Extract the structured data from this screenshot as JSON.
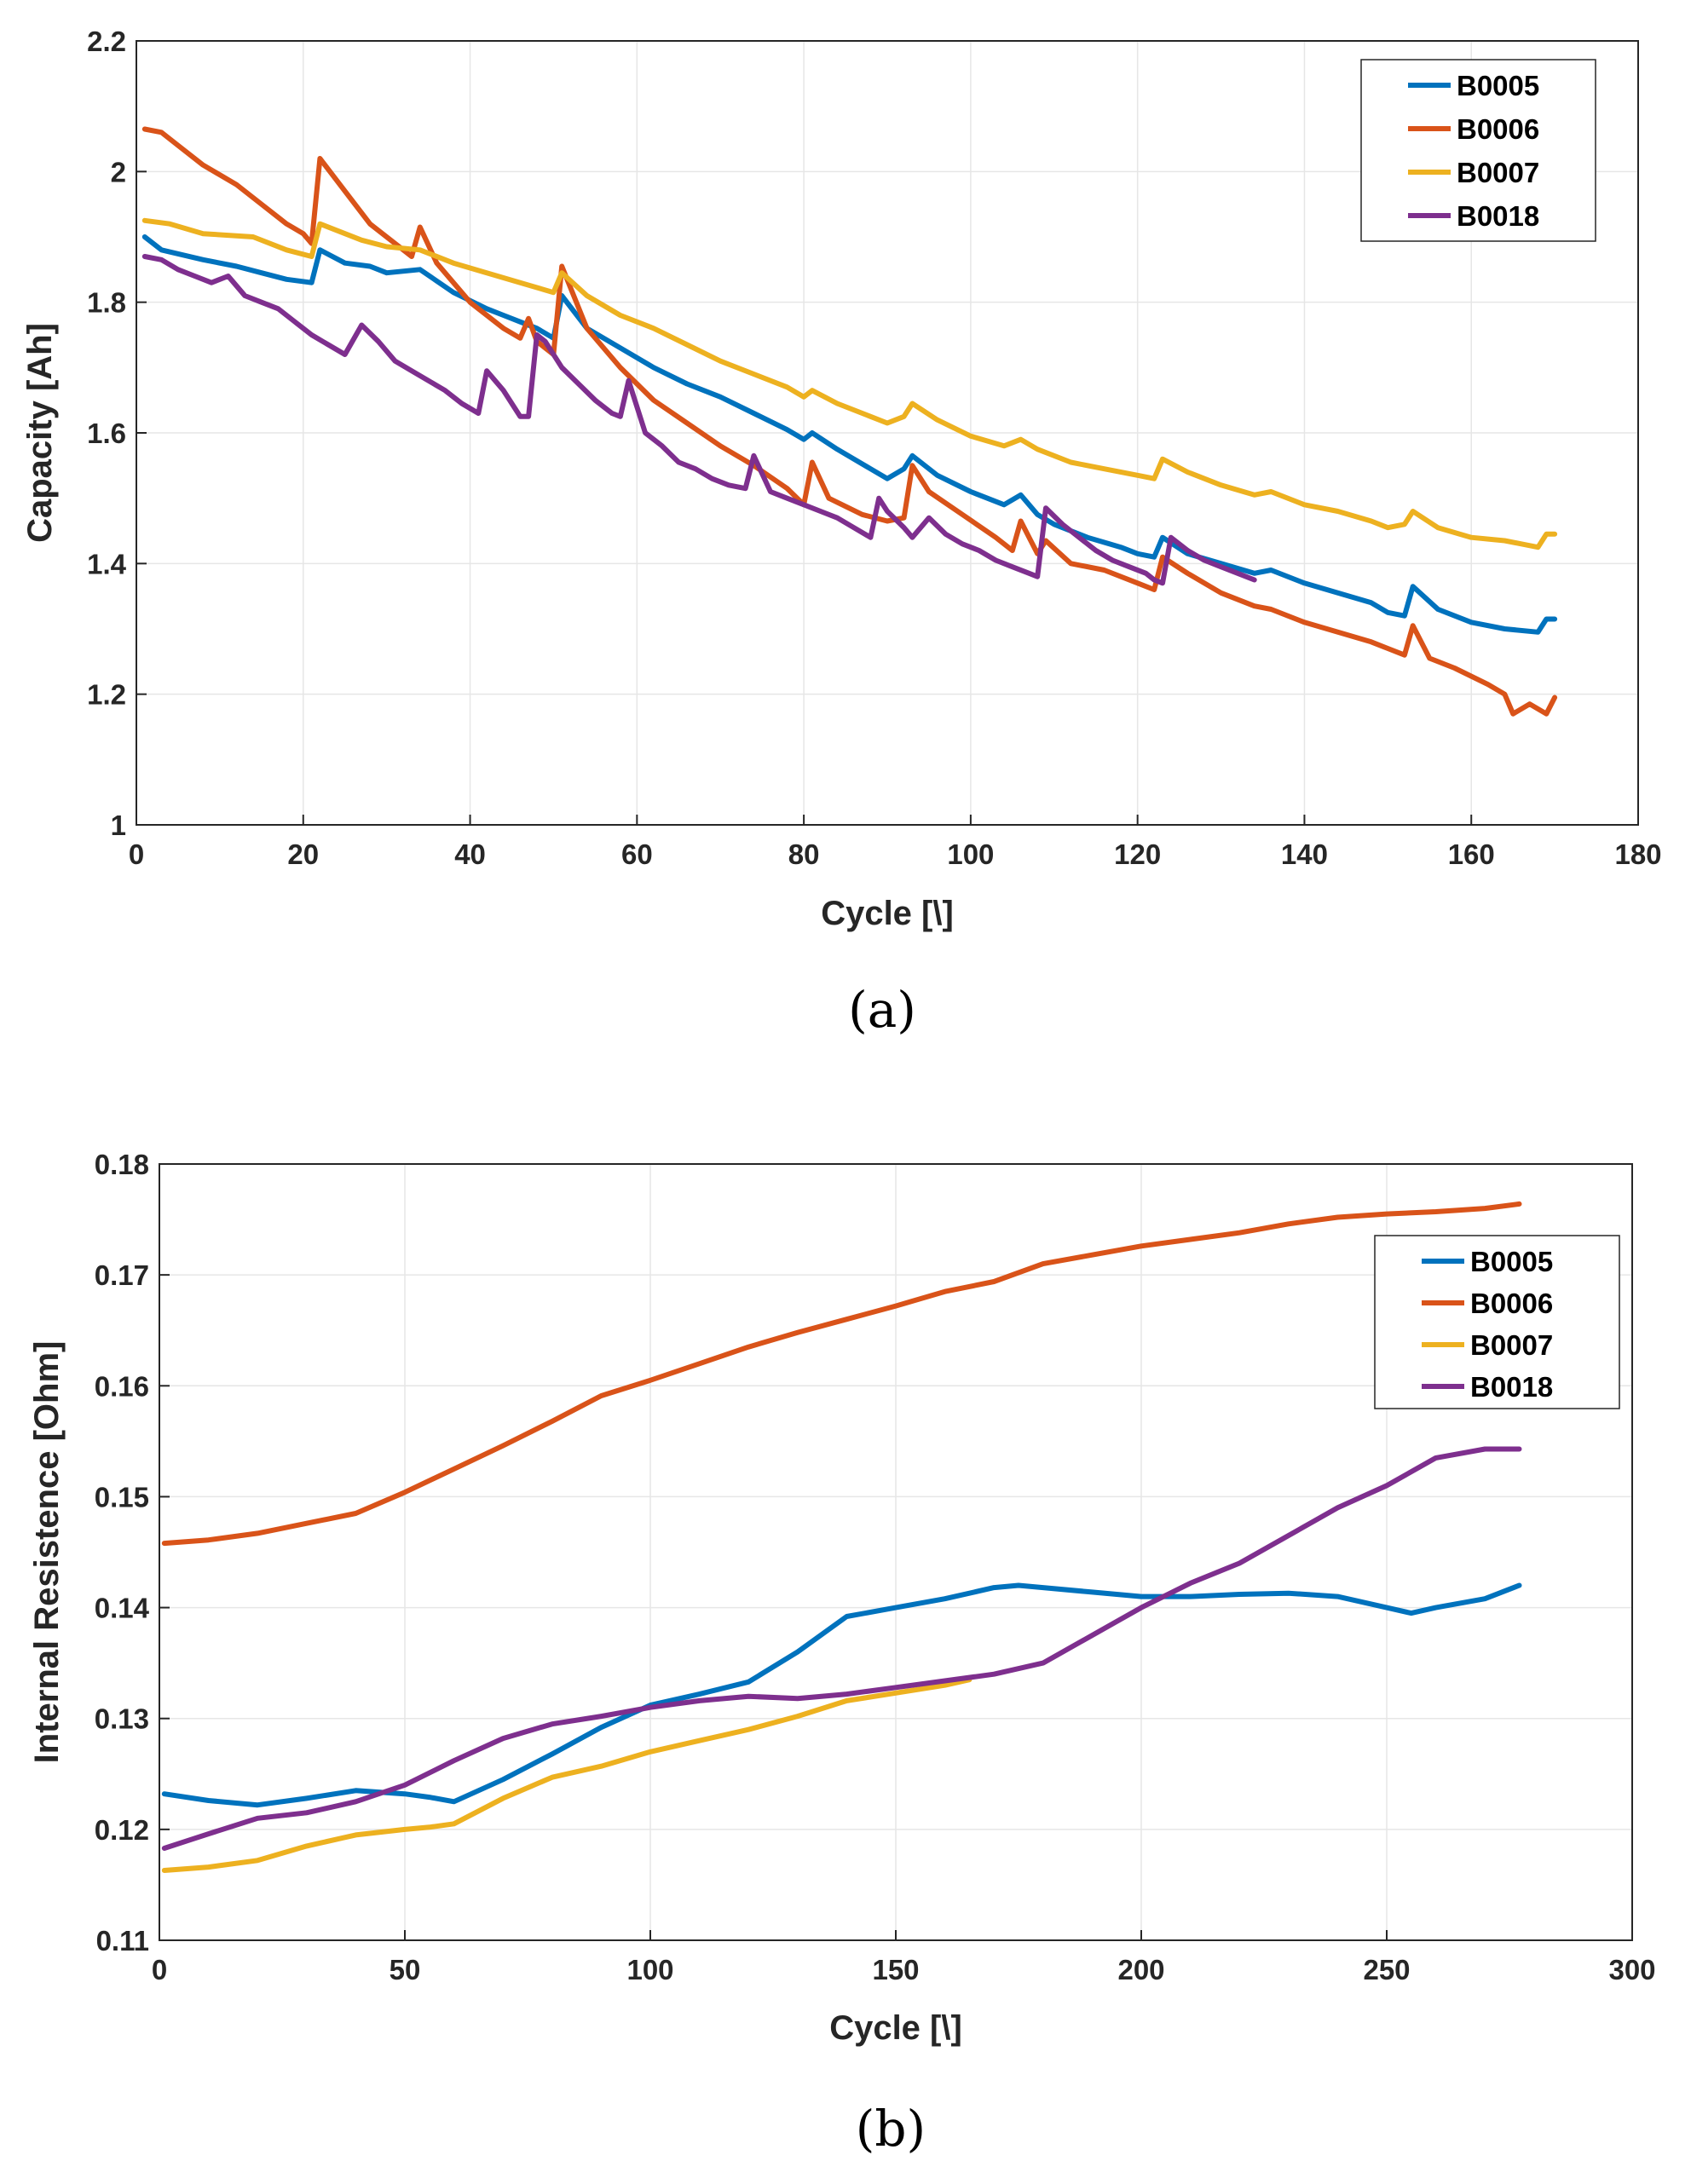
{
  "chart_data": [
    {
      "type": "line",
      "caption": "(a)",
      "xlabel": "Cycle [\\]",
      "ylabel": "Capacity [Ah]",
      "xlim": [
        0,
        180
      ],
      "ylim": [
        1,
        2.2
      ],
      "xticks": [
        "0",
        "20",
        "40",
        "60",
        "80",
        "100",
        "120",
        "140",
        "160",
        "180"
      ],
      "yticks": [
        "1",
        "1.2",
        "1.4",
        "1.6",
        "1.8",
        "2",
        "2.2"
      ],
      "grid": true,
      "legend_position": "top-right",
      "series": [
        {
          "name": "B0005",
          "color": "#0072BD",
          "x": [
            1,
            3,
            8,
            12,
            15,
            18,
            21,
            22,
            25,
            28,
            30,
            34,
            38,
            42,
            44,
            46,
            48,
            50,
            51,
            54,
            58,
            62,
            66,
            70,
            74,
            78,
            80,
            81,
            84,
            88,
            90,
            92,
            93,
            96,
            100,
            104,
            106,
            108,
            110,
            114,
            118,
            120,
            122,
            123,
            126,
            130,
            134,
            136,
            140,
            144,
            148,
            150,
            152,
            153,
            156,
            160,
            164,
            168,
            169,
            170
          ],
          "y": [
            1.9,
            1.88,
            1.865,
            1.855,
            1.845,
            1.835,
            1.83,
            1.88,
            1.86,
            1.855,
            1.845,
            1.85,
            1.815,
            1.79,
            1.78,
            1.77,
            1.76,
            1.745,
            1.81,
            1.76,
            1.73,
            1.7,
            1.675,
            1.655,
            1.63,
            1.605,
            1.59,
            1.6,
            1.575,
            1.545,
            1.53,
            1.545,
            1.565,
            1.535,
            1.51,
            1.49,
            1.505,
            1.475,
            1.46,
            1.44,
            1.425,
            1.415,
            1.41,
            1.44,
            1.415,
            1.4,
            1.385,
            1.39,
            1.37,
            1.355,
            1.34,
            1.325,
            1.32,
            1.365,
            1.33,
            1.31,
            1.3,
            1.295,
            1.315,
            1.315
          ]
        },
        {
          "name": "B0006",
          "color": "#D95319",
          "x": [
            1,
            3,
            5,
            8,
            12,
            15,
            18,
            20,
            21,
            22,
            25,
            28,
            31,
            33,
            34,
            36,
            40,
            44,
            46,
            47,
            48,
            50,
            51,
            54,
            58,
            62,
            66,
            70,
            74,
            78,
            80,
            81,
            83,
            87,
            90,
            92,
            93,
            95,
            99,
            103,
            105,
            106,
            108,
            109,
            112,
            116,
            120,
            122,
            123,
            126,
            130,
            134,
            136,
            140,
            144,
            148,
            150,
            152,
            153,
            155,
            158,
            162,
            164,
            165,
            167,
            169,
            170
          ],
          "y": [
            2.065,
            2.06,
            2.04,
            2.01,
            1.98,
            1.95,
            1.92,
            1.905,
            1.89,
            2.02,
            1.97,
            1.92,
            1.89,
            1.87,
            1.915,
            1.86,
            1.8,
            1.76,
            1.745,
            1.775,
            1.74,
            1.72,
            1.855,
            1.76,
            1.7,
            1.65,
            1.615,
            1.58,
            1.55,
            1.515,
            1.49,
            1.555,
            1.5,
            1.475,
            1.465,
            1.47,
            1.55,
            1.51,
            1.475,
            1.44,
            1.42,
            1.465,
            1.415,
            1.435,
            1.4,
            1.39,
            1.37,
            1.36,
            1.41,
            1.385,
            1.355,
            1.335,
            1.33,
            1.31,
            1.295,
            1.28,
            1.27,
            1.26,
            1.305,
            1.255,
            1.24,
            1.215,
            1.2,
            1.17,
            1.185,
            1.17,
            1.195
          ]
        },
        {
          "name": "B0007",
          "color": "#EDB120",
          "x": [
            1,
            4,
            8,
            14,
            18,
            21,
            22,
            24,
            27,
            30,
            34,
            38,
            42,
            46,
            50,
            51,
            54,
            58,
            62,
            66,
            70,
            74,
            78,
            80,
            81,
            84,
            88,
            90,
            92,
            93,
            96,
            100,
            104,
            106,
            108,
            112,
            116,
            120,
            122,
            123,
            126,
            130,
            134,
            136,
            140,
            144,
            148,
            150,
            152,
            153,
            156,
            160,
            164,
            168,
            169,
            170
          ],
          "y": [
            1.925,
            1.92,
            1.905,
            1.9,
            1.88,
            1.87,
            1.92,
            1.91,
            1.895,
            1.885,
            1.88,
            1.86,
            1.845,
            1.83,
            1.815,
            1.845,
            1.81,
            1.78,
            1.76,
            1.735,
            1.71,
            1.69,
            1.67,
            1.655,
            1.665,
            1.645,
            1.625,
            1.615,
            1.625,
            1.645,
            1.62,
            1.595,
            1.58,
            1.59,
            1.575,
            1.555,
            1.545,
            1.535,
            1.53,
            1.56,
            1.54,
            1.52,
            1.505,
            1.51,
            1.49,
            1.48,
            1.465,
            1.455,
            1.46,
            1.48,
            1.455,
            1.44,
            1.435,
            1.425,
            1.445,
            1.445
          ]
        },
        {
          "name": "B0018",
          "color": "#7E2F8E",
          "x": [
            1,
            3,
            5,
            7,
            9,
            11,
            13,
            15,
            17,
            19,
            21,
            23,
            25,
            27,
            29,
            31,
            33,
            35,
            37,
            39,
            41,
            42,
            44,
            46,
            47,
            48,
            49,
            51,
            53,
            55,
            57,
            58,
            59,
            61,
            63,
            65,
            67,
            69,
            71,
            73,
            74,
            76,
            78,
            80,
            82,
            84,
            86,
            88,
            89,
            90,
            92,
            93,
            95,
            97,
            99,
            101,
            103,
            105,
            107,
            108,
            109,
            111,
            113,
            115,
            117,
            119,
            121,
            122,
            123,
            124,
            126,
            128,
            130,
            132,
            134
          ],
          "y": [
            1.87,
            1.865,
            1.85,
            1.84,
            1.83,
            1.84,
            1.81,
            1.8,
            1.79,
            1.77,
            1.75,
            1.735,
            1.72,
            1.765,
            1.74,
            1.71,
            1.695,
            1.68,
            1.665,
            1.645,
            1.63,
            1.695,
            1.665,
            1.625,
            1.625,
            1.75,
            1.74,
            1.7,
            1.675,
            1.65,
            1.63,
            1.625,
            1.68,
            1.6,
            1.58,
            1.555,
            1.545,
            1.53,
            1.52,
            1.515,
            1.565,
            1.51,
            1.5,
            1.49,
            1.48,
            1.47,
            1.455,
            1.44,
            1.5,
            1.48,
            1.455,
            1.44,
            1.47,
            1.445,
            1.43,
            1.42,
            1.405,
            1.395,
            1.385,
            1.38,
            1.485,
            1.46,
            1.44,
            1.42,
            1.405,
            1.395,
            1.385,
            1.375,
            1.37,
            1.44,
            1.42,
            1.405,
            1.395,
            1.385,
            1.375
          ]
        }
      ]
    },
    {
      "type": "line",
      "caption": "(b)",
      "xlabel": "Cycle [\\]",
      "ylabel": "Internal Resistence [Ohm]",
      "xlim": [
        0,
        300
      ],
      "ylim": [
        0.11,
        0.18
      ],
      "xticks": [
        "0",
        "50",
        "100",
        "150",
        "200",
        "250",
        "300"
      ],
      "yticks": [
        "0.11",
        "0.12",
        "0.13",
        "0.14",
        "0.15",
        "0.16",
        "0.17",
        "0.18"
      ],
      "grid": true,
      "legend_position": "top-right",
      "series": [
        {
          "name": "B0005",
          "color": "#0072BD",
          "x": [
            1,
            10,
            20,
            30,
            40,
            50,
            55,
            60,
            70,
            80,
            90,
            100,
            110,
            120,
            130,
            140,
            150,
            160,
            170,
            175,
            180,
            190,
            200,
            210,
            220,
            230,
            240,
            250,
            255,
            260,
            270,
            277
          ],
          "y": [
            0.1232,
            0.1226,
            0.1222,
            0.1228,
            0.1235,
            0.1232,
            0.1229,
            0.1225,
            0.1245,
            0.1268,
            0.1292,
            0.1312,
            0.1322,
            0.1333,
            0.136,
            0.1392,
            0.14,
            0.1408,
            0.1418,
            0.142,
            0.1418,
            0.1414,
            0.141,
            0.141,
            0.1412,
            0.1413,
            0.141,
            0.14,
            0.1395,
            0.14,
            0.1408,
            0.142
          ]
        },
        {
          "name": "B0006",
          "color": "#D95319",
          "x": [
            1,
            10,
            20,
            30,
            40,
            50,
            60,
            70,
            80,
            90,
            100,
            110,
            120,
            130,
            140,
            150,
            160,
            170,
            180,
            190,
            200,
            210,
            220,
            230,
            240,
            250,
            260,
            270,
            277
          ],
          "y": [
            0.1458,
            0.1461,
            0.1467,
            0.1476,
            0.1485,
            0.1504,
            0.1525,
            0.1546,
            0.1568,
            0.1591,
            0.1605,
            0.162,
            0.1635,
            0.1648,
            0.166,
            0.1672,
            0.1685,
            0.1694,
            0.171,
            0.1718,
            0.1726,
            0.1732,
            0.1738,
            0.1746,
            0.1752,
            0.1755,
            0.1757,
            0.176,
            0.1764
          ]
        },
        {
          "name": "B0007",
          "color": "#EDB120",
          "x": [
            1,
            10,
            20,
            30,
            40,
            50,
            55,
            60,
            70,
            80,
            90,
            100,
            110,
            120,
            130,
            140,
            150,
            160,
            165
          ],
          "y": [
            0.1163,
            0.1166,
            0.1172,
            0.1185,
            0.1195,
            0.12,
            0.1202,
            0.1205,
            0.1228,
            0.1247,
            0.1257,
            0.127,
            0.128,
            0.129,
            0.1302,
            0.1316,
            0.1323,
            0.133,
            0.1335
          ]
        },
        {
          "name": "B0018",
          "color": "#7E2F8E",
          "x": [
            1,
            10,
            20,
            30,
            40,
            50,
            60,
            70,
            80,
            90,
            100,
            110,
            120,
            130,
            140,
            150,
            160,
            170,
            180,
            190,
            200,
            210,
            220,
            230,
            240,
            250,
            260,
            270,
            277
          ],
          "y": [
            0.1183,
            0.1196,
            0.121,
            0.1215,
            0.1225,
            0.124,
            0.1262,
            0.1282,
            0.1295,
            0.1302,
            0.131,
            0.1316,
            0.132,
            0.1318,
            0.1322,
            0.1328,
            0.1334,
            0.134,
            0.135,
            0.1375,
            0.14,
            0.1422,
            0.144,
            0.1465,
            0.149,
            0.151,
            0.1535,
            0.1543,
            0.1543
          ]
        }
      ]
    }
  ]
}
